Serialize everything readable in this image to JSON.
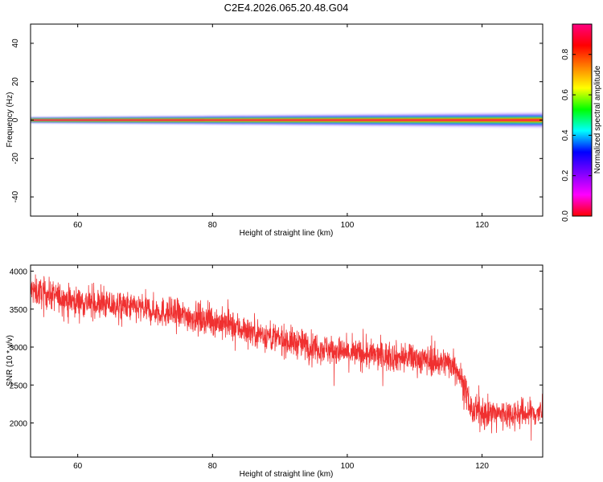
{
  "title": "C2E4.2026.065.20.48.G04",
  "chart_data": [
    {
      "type": "heatmap",
      "xlabel": "Height of straight line (km)",
      "ylabel": "Frequency (Hz)",
      "xlim": [
        53,
        129
      ],
      "ylim": [
        -50,
        50
      ],
      "xticks": [
        60,
        80,
        100,
        120
      ],
      "yticks": [
        40,
        20,
        0,
        -20,
        -40
      ],
      "ytick_labels": [
        "40",
        "20",
        "0",
        "-20",
        "-40"
      ],
      "band_center_hz": 0,
      "band_halfwidth_hz": [
        1.5,
        4
      ],
      "colorbar": {
        "label": "Normalized spectral amplitude",
        "range": [
          0.0,
          0.95
        ],
        "ticks": [
          0.0,
          0.2,
          0.4,
          0.6,
          0.8
        ],
        "tick_labels": [
          "0.0",
          "0.2",
          "0.4",
          "0.6",
          "0.8"
        ],
        "colormap": [
          "#ff0000",
          "#ff00ff",
          "#8000ff",
          "#0000ff",
          "#00ffff",
          "#00ff00",
          "#ffff00",
          "#ff8000",
          "#ff0000",
          "#ff0080"
        ]
      }
    },
    {
      "type": "line",
      "xlabel": "Height of straight line (km)",
      "ylabel": "SNR (10 * v/v)",
      "xlim": [
        53,
        129
      ],
      "ylim": [
        1550,
        4080
      ],
      "xticks": [
        60,
        80,
        100,
        120
      ],
      "yticks": [
        4000,
        3500,
        3000,
        2500,
        2000
      ],
      "series_color": "#f03030",
      "trend": [
        {
          "x": 53,
          "y": 3750
        },
        {
          "x": 60,
          "y": 3600
        },
        {
          "x": 70,
          "y": 3500
        },
        {
          "x": 80,
          "y": 3350
        },
        {
          "x": 90,
          "y": 3100
        },
        {
          "x": 100,
          "y": 2920
        },
        {
          "x": 110,
          "y": 2850
        },
        {
          "x": 116,
          "y": 2780
        },
        {
          "x": 117.5,
          "y": 2450
        },
        {
          "x": 118.5,
          "y": 2150
        },
        {
          "x": 122,
          "y": 2120
        },
        {
          "x": 129,
          "y": 2130
        }
      ],
      "noise_amplitude": 180,
      "sample_count": 2400
    }
  ]
}
